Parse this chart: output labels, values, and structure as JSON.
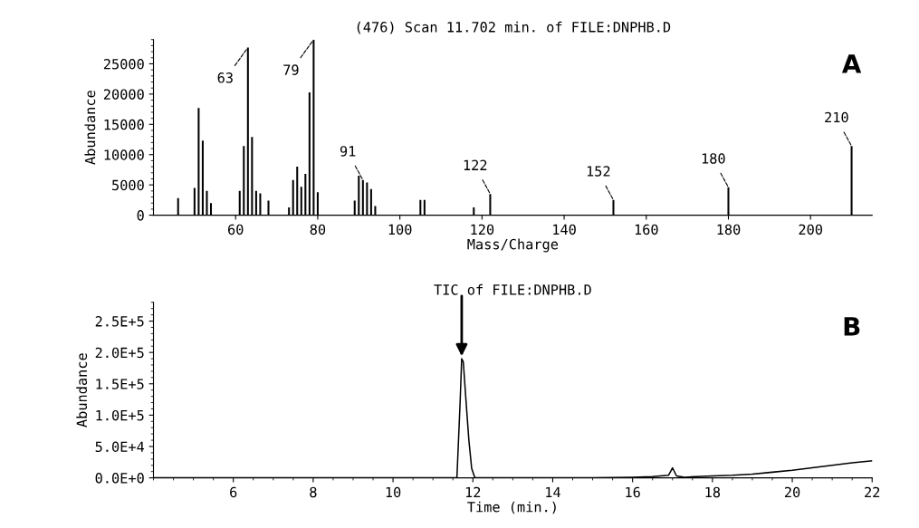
{
  "chart_data": [
    {
      "type": "bar",
      "title": "(476) Scan 11.702 min. of FILE:DNPHB.D",
      "xlabel": "Mass/Charge",
      "ylabel": "Abundance",
      "x": [
        46,
        50,
        51,
        52,
        53,
        54,
        61,
        62,
        63,
        64,
        65,
        66,
        68,
        73,
        74,
        75,
        76,
        77,
        78,
        79,
        80,
        89,
        90,
        91,
        92,
        93,
        94,
        105,
        106,
        118,
        122,
        152,
        180,
        210
      ],
      "values": [
        2800,
        4500,
        17700,
        12300,
        4000,
        2000,
        4000,
        11400,
        27700,
        12900,
        4000,
        3600,
        2400,
        1300,
        5800,
        8000,
        4700,
        6800,
        20300,
        29000,
        3800,
        2400,
        6500,
        5800,
        5400,
        4300,
        1500,
        2500,
        2500,
        1300,
        3500,
        2500,
        4600,
        11400
      ],
      "color": "#000000",
      "xlim": [
        40,
        215
      ],
      "xticks": [
        60,
        80,
        100,
        120,
        140,
        160,
        180,
        200
      ],
      "ylim": [
        0,
        29000
      ],
      "yticks": [
        0,
        5000,
        10000,
        15000,
        20000,
        25000
      ],
      "annotations": [
        {
          "text": "63",
          "x": 63,
          "y": 27700
        },
        {
          "text": "79",
          "x": 79,
          "y": 29000
        },
        {
          "text": "91",
          "x": 91,
          "y": 5800
        },
        {
          "text": "122",
          "x": 122,
          "y": 3500
        },
        {
          "text": "152",
          "x": 152,
          "y": 2500
        },
        {
          "text": "180",
          "x": 180,
          "y": 4600
        },
        {
          "text": "210",
          "x": 210,
          "y": 11400
        },
        "A"
      ],
      "grid": false,
      "legend": false
    },
    {
      "type": "line",
      "title": "TIC of FILE:DNPHB.D",
      "xlabel": "Time (min.)",
      "ylabel": "Abundance",
      "x": [
        4,
        6,
        8,
        10,
        11.6,
        11.68,
        11.72,
        11.76,
        11.82,
        11.9,
        11.97,
        12.05,
        13,
        14,
        15,
        16,
        16.5,
        16.9,
        17.0,
        17.1,
        17.3,
        17.6,
        18,
        18.5,
        19,
        19.5,
        20,
        20.5,
        21,
        21.5,
        22
      ],
      "values": [
        0,
        0,
        0,
        0,
        0,
        120000,
        190000,
        185000,
        130000,
        60000,
        15000,
        0,
        0,
        0,
        0,
        1000,
        2000,
        4000,
        16000,
        3000,
        1000,
        2000,
        3000,
        4000,
        6000,
        9000,
        12000,
        16000,
        20000,
        24000,
        27000
      ],
      "color": "#000000",
      "marker": "none",
      "line_style": "solid",
      "xlim": [
        4,
        22
      ],
      "xticks": [
        6,
        8,
        10,
        12,
        14,
        16,
        18,
        20,
        22
      ],
      "ylim": [
        0,
        280000
      ],
      "yticks": [
        {
          "value": 0,
          "label": "0.0E+0"
        },
        {
          "value": 50000,
          "label": "5.0E+4"
        },
        {
          "value": 100000,
          "label": "1.0E+5"
        },
        {
          "value": 150000,
          "label": "1.5E+5"
        },
        {
          "value": 200000,
          "label": "2.0E+5"
        },
        {
          "value": 250000,
          "label": "2.5E+5"
        }
      ],
      "annotations": [
        "B"
      ],
      "grid": false,
      "legend": false
    }
  ]
}
